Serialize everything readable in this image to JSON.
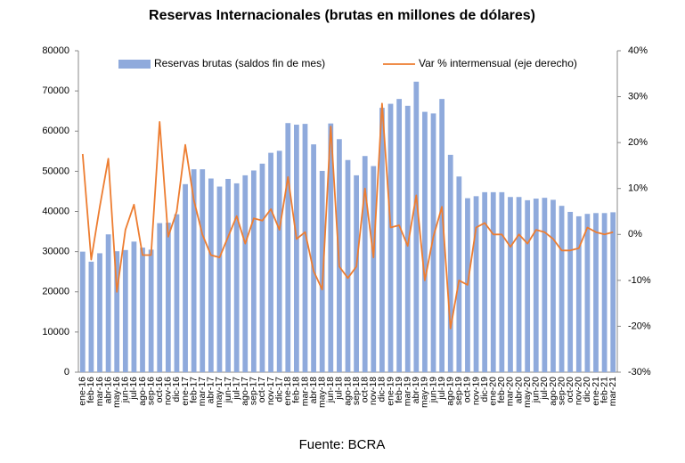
{
  "chart_data": {
    "type": "bar",
    "title": "Reservas Internacionales (brutas en millones de dólares)",
    "source": "Fuente: BCRA",
    "categories": [
      "ene-16",
      "feb-16",
      "mar-16",
      "abr-16",
      "may-16",
      "jun-16",
      "jul-16",
      "ago-16",
      "sep-16",
      "oct-16",
      "nov-16",
      "dic-16",
      "ene-17",
      "feb-17",
      "mar-17",
      "abr-17",
      "may-17",
      "jun-17",
      "jul-17",
      "ago-17",
      "sep-17",
      "oct-17",
      "nov-17",
      "dic-17",
      "ene-18",
      "feb-18",
      "mar-18",
      "abr-18",
      "may-18",
      "jun-18",
      "jul-18",
      "ago-18",
      "sep-18",
      "oct-18",
      "nov-18",
      "dic-18",
      "ene-19",
      "feb-19",
      "mar-19",
      "abr-19",
      "may-19",
      "jun-19",
      "jul-19",
      "ago-19",
      "sep-19",
      "oct-19",
      "nov-19",
      "dic-19",
      "ene-20",
      "feb-20",
      "mar-20",
      "abr-20",
      "may-20",
      "jun-20",
      "jul-20",
      "ago-20",
      "sep-20",
      "oct-20",
      "nov-20",
      "dic-20",
      "ene-21",
      "feb-21",
      "mar-21"
    ],
    "series": [
      {
        "name": "Reservas brutas (saldos fin de mes)",
        "type": "bar",
        "color": "#8faadc",
        "values": [
          30000,
          27500,
          29600,
          34300,
          30100,
          30400,
          32500,
          31000,
          30500,
          37100,
          37200,
          39300,
          46800,
          50500,
          50500,
          48200,
          46200,
          48100,
          47000,
          49000,
          50200,
          51900,
          54600,
          55100,
          62000,
          61600,
          61800,
          56700,
          50100,
          61900,
          58000,
          52800,
          49000,
          53800,
          51300,
          65800,
          66800,
          68000,
          66300,
          72300,
          64800,
          64400,
          68000,
          54100,
          48700,
          43300,
          43800,
          44800,
          44800,
          44800,
          43600,
          43600,
          42800,
          43200,
          43400,
          42900,
          41400,
          39900,
          38800,
          39400,
          39600,
          39600,
          39800
        ]
      },
      {
        "name": "Var % intermensual (eje derecho)",
        "type": "line",
        "axis": "y2",
        "color": "#ed7d31",
        "values": [
          17.5,
          -5.5,
          6,
          16.5,
          -12.5,
          1,
          6.5,
          -4.5,
          -4.5,
          24.5,
          -0.5,
          5,
          19.5,
          7.5,
          0,
          -4.5,
          -5,
          -0.5,
          4,
          -2,
          3.5,
          3,
          5.5,
          1,
          12.5,
          -1,
          0.5,
          -8,
          -12,
          23.5,
          -7,
          -9.5,
          -7,
          10,
          -5,
          28.5,
          1.5,
          2,
          -2.5,
          8.5,
          -10,
          -0.5,
          6,
          -20.5,
          -10,
          -11,
          1.5,
          2.5,
          0,
          0,
          -2.7,
          0,
          -2,
          1,
          0.5,
          -1,
          -3.5,
          -3.5,
          -3,
          1.5,
          0.5,
          0,
          0.5
        ]
      }
    ],
    "ylim": [
      0,
      80000
    ],
    "yticks": [
      0,
      10000,
      20000,
      30000,
      40000,
      50000,
      60000,
      70000,
      80000
    ],
    "y2lim": [
      -30,
      40
    ],
    "y2ticks": [
      {
        "value": -30,
        "label": "-30%"
      },
      {
        "value": -20,
        "label": "-20%"
      },
      {
        "value": -10,
        "label": "-10%"
      },
      {
        "value": 0,
        "label": "0%"
      },
      {
        "value": 10,
        "label": "10%"
      },
      {
        "value": 20,
        "label": "20%"
      },
      {
        "value": 30,
        "label": "30%"
      },
      {
        "value": 40,
        "label": "40%"
      }
    ],
    "legend": "top"
  }
}
